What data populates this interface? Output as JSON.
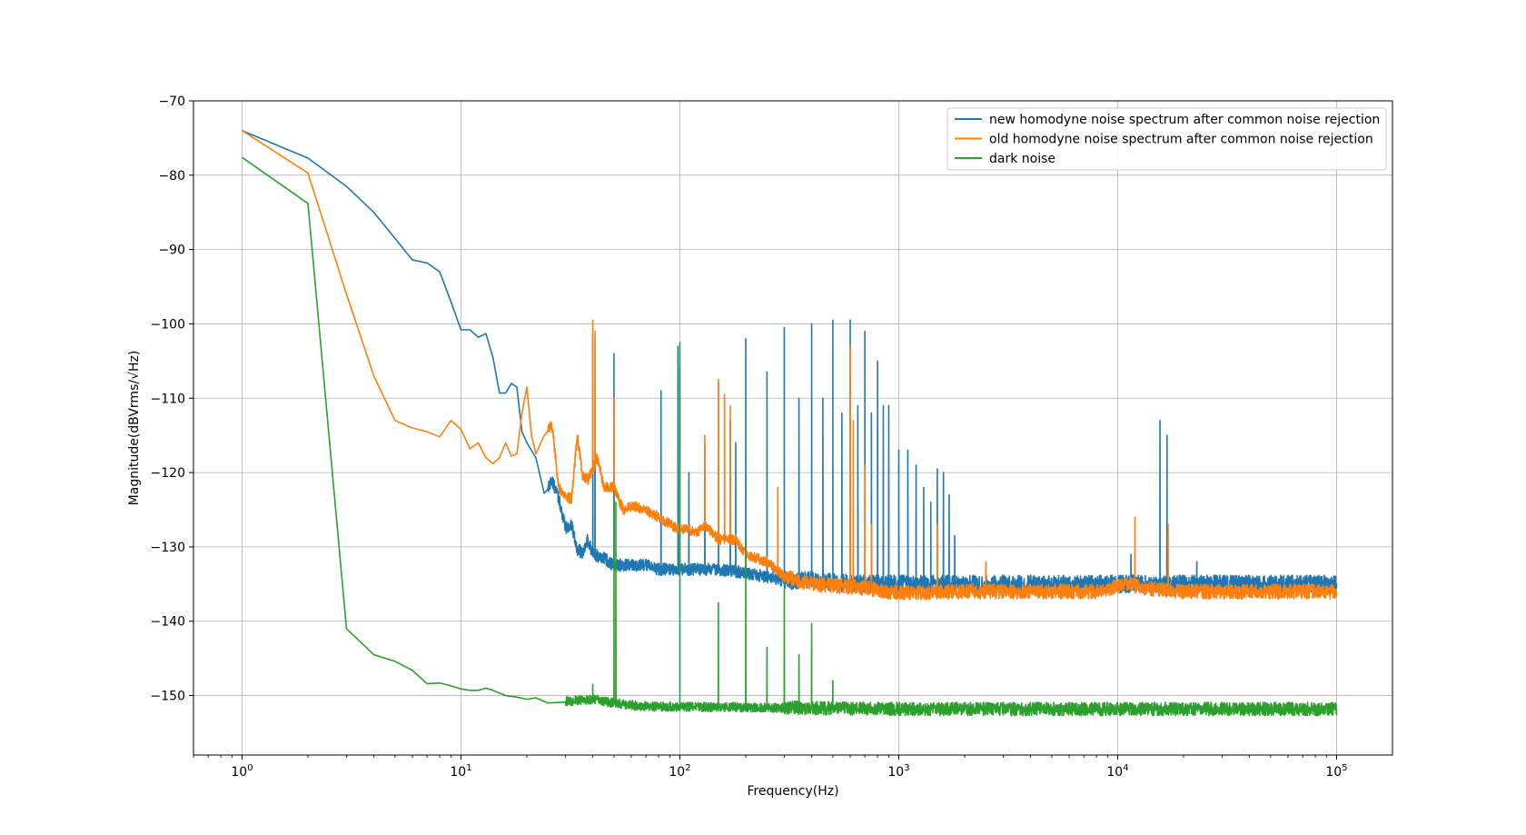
{
  "chart_data": {
    "type": "line",
    "xscale": "log",
    "xlabel": "Frequency(Hz)",
    "ylabel": "Magnitude(dBVrms/√Hz)",
    "xlim": [
      0.6,
      180000
    ],
    "ylim": [
      -158,
      -70
    ],
    "grid": true,
    "legend_position": "top-right",
    "x_ticks": [
      {
        "value": 1,
        "label_base": "10",
        "label_exp": "0"
      },
      {
        "value": 10,
        "label_base": "10",
        "label_exp": "1"
      },
      {
        "value": 100,
        "label_base": "10",
        "label_exp": "2"
      },
      {
        "value": 1000,
        "label_base": "10",
        "label_exp": "3"
      },
      {
        "value": 10000,
        "label_base": "10",
        "label_exp": "4"
      },
      {
        "value": 100000,
        "label_base": "10",
        "label_exp": "5"
      }
    ],
    "y_ticks": [
      {
        "value": -70,
        "label": "−70"
      },
      {
        "value": -80,
        "label": "−80"
      },
      {
        "value": -90,
        "label": "−90"
      },
      {
        "value": -100,
        "label": "−100"
      },
      {
        "value": -110,
        "label": "−110"
      },
      {
        "value": -120,
        "label": "−120"
      },
      {
        "value": -130,
        "label": "−130"
      },
      {
        "value": -140,
        "label": "−140"
      },
      {
        "value": -150,
        "label": "−150"
      }
    ],
    "series": [
      {
        "name": "new homodyne noise spectrum after common noise rejection",
        "color": "#1f77b4",
        "baseline": [
          [
            1,
            -74
          ],
          [
            2,
            -77.7
          ],
          [
            3,
            -81.5
          ],
          [
            4,
            -85
          ],
          [
            5,
            -88.5
          ],
          [
            6,
            -91.4
          ],
          [
            7,
            -91.8
          ],
          [
            8,
            -93
          ],
          [
            9,
            -97
          ],
          [
            10,
            -100.8
          ],
          [
            11,
            -100.8
          ],
          [
            12,
            -101.8
          ],
          [
            13,
            -101.3
          ],
          [
            14,
            -104.5
          ],
          [
            15,
            -109.3
          ],
          [
            16,
            -109.3
          ],
          [
            17,
            -108
          ],
          [
            18,
            -108.5
          ],
          [
            19,
            -114.5
          ],
          [
            20,
            -116
          ],
          [
            22,
            -118
          ],
          [
            24,
            -122.8
          ],
          [
            26,
            -121
          ],
          [
            28,
            -123.5
          ],
          [
            30,
            -127.5
          ],
          [
            32,
            -127
          ],
          [
            34,
            -130.3
          ],
          [
            36,
            -130.8
          ],
          [
            38,
            -129
          ],
          [
            40,
            -131
          ],
          [
            45,
            -131.5
          ],
          [
            50,
            -132.5
          ],
          [
            60,
            -132.5
          ],
          [
            70,
            -132.5
          ],
          [
            80,
            -133
          ],
          [
            100,
            -133
          ],
          [
            150,
            -133
          ],
          [
            200,
            -133.5
          ],
          [
            250,
            -134
          ],
          [
            300,
            -134.5
          ],
          [
            400,
            -134.5
          ],
          [
            500,
            -134.8
          ],
          [
            700,
            -135
          ],
          [
            1000,
            -135
          ],
          [
            2000,
            -135
          ],
          [
            5000,
            -135
          ],
          [
            10000,
            -135
          ],
          [
            20000,
            -135
          ],
          [
            50000,
            -135
          ],
          [
            100000,
            -135
          ]
        ],
        "peaks": [
          [
            40,
            -101.5
          ],
          [
            41,
            -102.5
          ],
          [
            50,
            -104
          ],
          [
            82,
            -109
          ],
          [
            98,
            -103
          ],
          [
            100,
            -106
          ],
          [
            110,
            -120
          ],
          [
            130,
            -116
          ],
          [
            150,
            -108
          ],
          [
            170,
            -113
          ],
          [
            180,
            -116
          ],
          [
            200,
            -102
          ],
          [
            250,
            -106.5
          ],
          [
            300,
            -100.5
          ],
          [
            350,
            -110
          ],
          [
            400,
            -100
          ],
          [
            450,
            -110
          ],
          [
            500,
            -99.5
          ],
          [
            550,
            -112
          ],
          [
            600,
            -99.5
          ],
          [
            650,
            -111
          ],
          [
            700,
            -101
          ],
          [
            750,
            -112
          ],
          [
            800,
            -105
          ],
          [
            850,
            -111
          ],
          [
            900,
            -111
          ],
          [
            1000,
            -117
          ],
          [
            1100,
            -117
          ],
          [
            1200,
            -119
          ],
          [
            1300,
            -122
          ],
          [
            1400,
            -124
          ],
          [
            1500,
            -119.5
          ],
          [
            1600,
            -120
          ],
          [
            1700,
            -123
          ],
          [
            1800,
            -128.5
          ],
          [
            11500,
            -131
          ],
          [
            15600,
            -113
          ],
          [
            16800,
            -115
          ],
          [
            23000,
            -132
          ]
        ],
        "noise_amplitude": 1.2
      },
      {
        "name": "old homodyne noise spectrum after common noise rejection",
        "color": "#ff7f0e",
        "baseline": [
          [
            1,
            -74
          ],
          [
            2,
            -79.7
          ],
          [
            3,
            -96
          ],
          [
            4,
            -107
          ],
          [
            5,
            -113
          ],
          [
            6,
            -114
          ],
          [
            7,
            -114.5
          ],
          [
            8,
            -115.2
          ],
          [
            9,
            -113
          ],
          [
            10,
            -114.2
          ],
          [
            11,
            -116.8
          ],
          [
            12,
            -116
          ],
          [
            13,
            -118
          ],
          [
            14,
            -118.8
          ],
          [
            15,
            -118
          ],
          [
            16,
            -116
          ],
          [
            17,
            -117.8
          ],
          [
            18,
            -117.5
          ],
          [
            19,
            -112
          ],
          [
            20,
            -108.5
          ],
          [
            21,
            -115
          ],
          [
            22,
            -117.5
          ],
          [
            24,
            -115
          ],
          [
            26,
            -113.5
          ],
          [
            28,
            -122
          ],
          [
            30,
            -123.3
          ],
          [
            32,
            -123.5
          ],
          [
            34,
            -115
          ],
          [
            36,
            -120.5
          ],
          [
            38,
            -121
          ],
          [
            42,
            -118
          ],
          [
            45,
            -122
          ],
          [
            50,
            -122
          ],
          [
            55,
            -125
          ],
          [
            60,
            -124.5
          ],
          [
            70,
            -125
          ],
          [
            80,
            -126
          ],
          [
            90,
            -127
          ],
          [
            100,
            -127.5
          ],
          [
            120,
            -128
          ],
          [
            130,
            -127
          ],
          [
            150,
            -129
          ],
          [
            180,
            -129
          ],
          [
            200,
            -131
          ],
          [
            250,
            -132
          ],
          [
            300,
            -134
          ],
          [
            400,
            -135
          ],
          [
            500,
            -135.2
          ],
          [
            700,
            -135.5
          ],
          [
            1000,
            -136.2
          ],
          [
            2000,
            -136
          ],
          [
            5000,
            -136
          ],
          [
            8000,
            -136
          ],
          [
            11000,
            -135
          ],
          [
            13000,
            -135.5
          ],
          [
            20000,
            -136
          ],
          [
            50000,
            -136
          ],
          [
            100000,
            -136
          ]
        ],
        "peaks": [
          [
            40,
            -99.5
          ],
          [
            41,
            -101
          ],
          [
            50,
            -110
          ],
          [
            130,
            -115
          ],
          [
            150,
            -107.5
          ],
          [
            160,
            -109.5
          ],
          [
            170,
            -111
          ],
          [
            280,
            -122
          ],
          [
            600,
            -103
          ],
          [
            620,
            -113
          ],
          [
            700,
            -119
          ],
          [
            750,
            -127
          ],
          [
            1500,
            -127
          ],
          [
            2500,
            -132
          ],
          [
            12000,
            -126
          ],
          [
            17000,
            -127
          ]
        ],
        "noise_amplitude": 1.0
      },
      {
        "name": "dark noise",
        "color": "#2ca02c",
        "baseline": [
          [
            1,
            -77.6
          ],
          [
            2,
            -83.8
          ],
          [
            3,
            -141
          ],
          [
            4,
            -144.5
          ],
          [
            5,
            -145.4
          ],
          [
            6,
            -146.6
          ],
          [
            7,
            -148.4
          ],
          [
            8,
            -148.3
          ],
          [
            9,
            -148.7
          ],
          [
            10,
            -149.1
          ],
          [
            11,
            -149.3
          ],
          [
            12,
            -149.3
          ],
          [
            13,
            -149
          ],
          [
            14,
            -149.3
          ],
          [
            16,
            -150
          ],
          [
            18,
            -150.2
          ],
          [
            20,
            -150.5
          ],
          [
            22,
            -150.3
          ],
          [
            25,
            -151
          ],
          [
            30,
            -150.8
          ],
          [
            40,
            -150.5
          ],
          [
            50,
            -151
          ],
          [
            60,
            -151.3
          ],
          [
            80,
            -151.5
          ],
          [
            100,
            -151.5
          ],
          [
            1000,
            -151.8
          ],
          [
            10000,
            -151.8
          ],
          [
            100000,
            -151.8
          ]
        ],
        "peaks": [
          [
            40,
            -148.5
          ],
          [
            50,
            -122.5
          ],
          [
            51,
            -124
          ],
          [
            100,
            -102.5
          ],
          [
            150,
            -137.5
          ],
          [
            200,
            -129
          ],
          [
            250,
            -143.5
          ],
          [
            300,
            -135.8
          ],
          [
            350,
            -144.5
          ],
          [
            400,
            -140.3
          ],
          [
            500,
            -148
          ]
        ],
        "noise_amplitude": 0.9
      }
    ]
  }
}
